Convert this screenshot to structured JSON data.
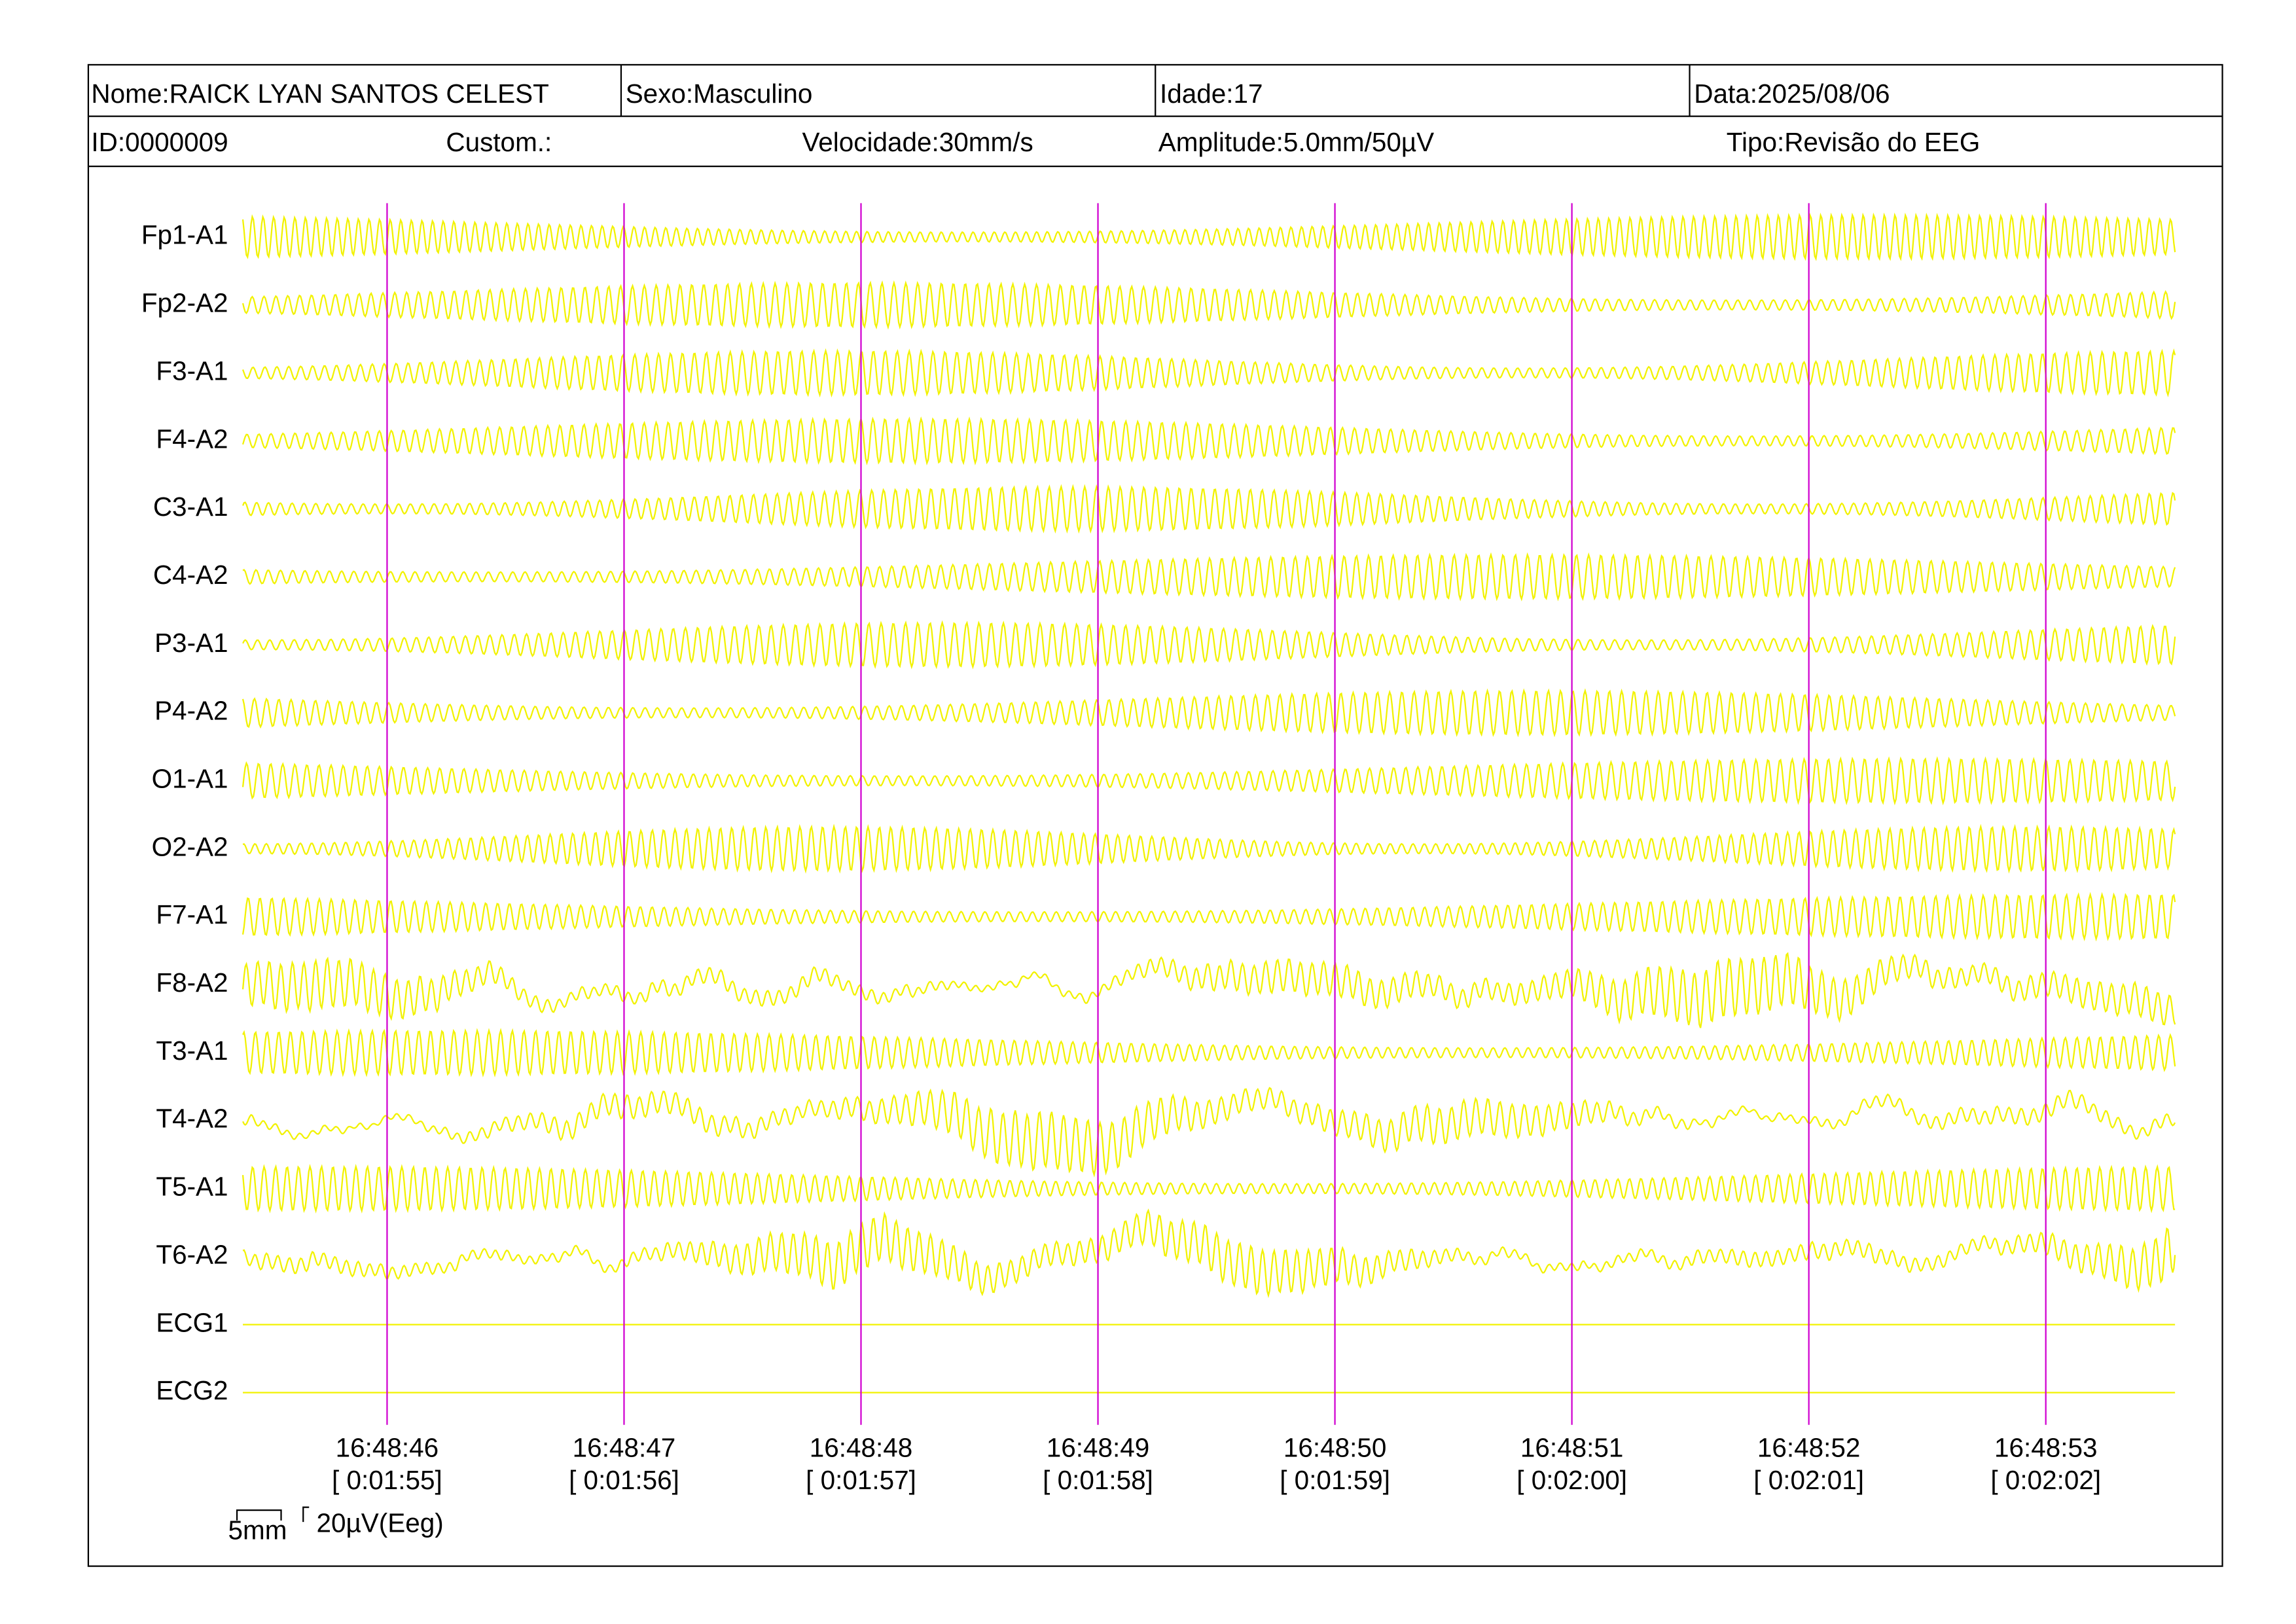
{
  "header": {
    "rows": [
      [
        "Nome:RAICK LYAN SANTOS CELEST",
        "Sexo:Masculino",
        "Idade:17",
        "Data:2025/08/06"
      ],
      [
        "ID:0000009",
        "Custom.:",
        "Velocidade:30mm/s",
        "Amplitude:5.0mm/50µV",
        "Tipo:Revisão do EEG"
      ]
    ]
  },
  "channels": [
    "Fp1-A1",
    "Fp2-A2",
    "F3-A1",
    "F4-A2",
    "C3-A1",
    "C4-A2",
    "P3-A1",
    "P4-A2",
    "O1-A1",
    "O2-A2",
    "F7-A1",
    "F8-A2",
    "T3-A1",
    "T4-A2",
    "T5-A1",
    "T6-A2",
    "ECG1",
    "ECG2"
  ],
  "time_marks": [
    {
      "time": "16:48:46",
      "elapsed": "[ 0:01:55]"
    },
    {
      "time": "16:48:47",
      "elapsed": "[ 0:01:56]"
    },
    {
      "time": "16:48:48",
      "elapsed": "[ 0:01:57]"
    },
    {
      "time": "16:48:49",
      "elapsed": "[ 0:01:58]"
    },
    {
      "time": "16:48:50",
      "elapsed": "[ 0:01:59]"
    },
    {
      "time": "16:48:51",
      "elapsed": "[ 0:02:00]"
    },
    {
      "time": "16:48:52",
      "elapsed": "[ 0:02:01]"
    },
    {
      "time": "16:48:53",
      "elapsed": "[ 0:02:02]"
    }
  ],
  "scale": {
    "length": "5mm",
    "amplitude": "20µV(Eeg)"
  }
}
